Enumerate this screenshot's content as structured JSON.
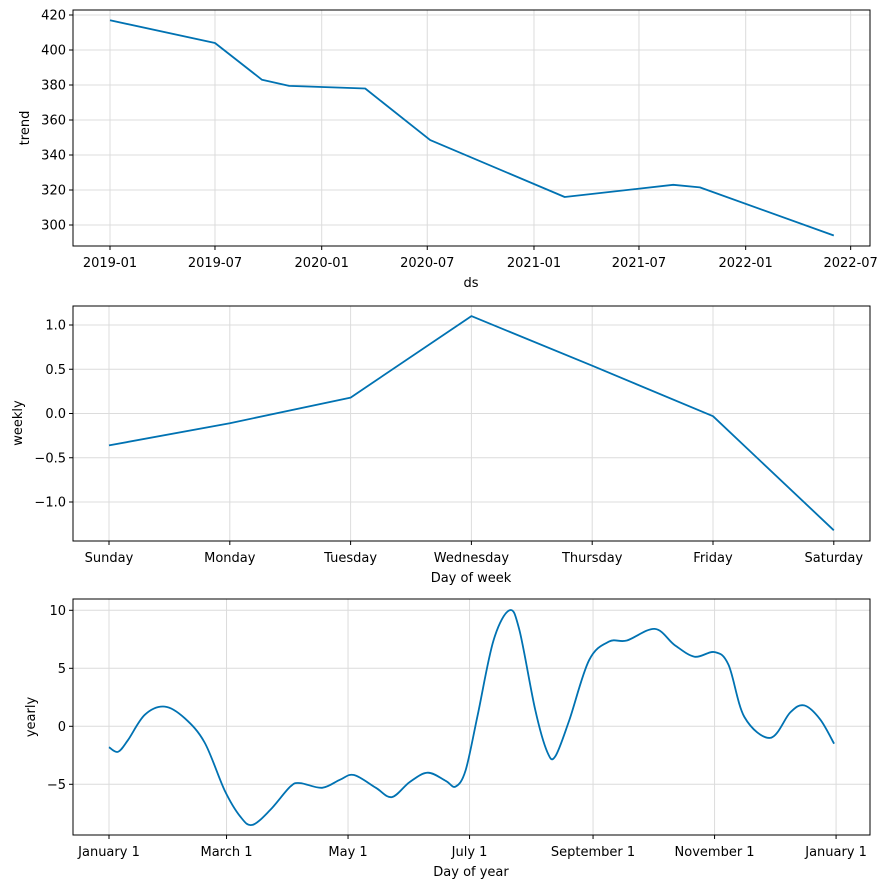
{
  "chart_data": [
    {
      "type": "line",
      "xlabel": "ds",
      "ylabel": "trend",
      "grid": true,
      "color": "#0072B2",
      "ylim": [
        288,
        423
      ],
      "x_ticks": [
        "2019-01",
        "2019-07",
        "2020-01",
        "2020-07",
        "2021-01",
        "2021-07",
        "2022-01",
        "2022-07"
      ],
      "y_ticks": [
        "300",
        "320",
        "340",
        "360",
        "380",
        "400",
        "420"
      ],
      "x": [
        "2019-01-01",
        "2019-07-01",
        "2019-09-20",
        "2019-11-06",
        "2020-03-16",
        "2020-07-06",
        "2021-02-23",
        "2021-08-29",
        "2021-10-14",
        "2022-06-02"
      ],
      "y": [
        417,
        404,
        383,
        379.5,
        378,
        348.5,
        316,
        323,
        321.5,
        294
      ]
    },
    {
      "type": "line",
      "xlabel": "Day of week",
      "ylabel": "weekly",
      "grid": true,
      "color": "#0072B2",
      "ylim": [
        -1.45,
        1.23
      ],
      "y_ticks": [
        "−1.0",
        "−0.5",
        "0.0",
        "0.5",
        "1.0"
      ],
      "categories": [
        "Sunday",
        "Monday",
        "Tuesday",
        "Wednesday",
        "Thursday",
        "Friday",
        "Saturday"
      ],
      "values": [
        -0.36,
        -0.11,
        0.18,
        1.1,
        0.54,
        -0.03,
        -1.32
      ]
    },
    {
      "type": "line",
      "xlabel": "Day of year",
      "ylabel": "yearly",
      "grid": true,
      "color": "#0072B2",
      "ylim": [
        -9.4,
        10.9
      ],
      "x_ticks": [
        {
          "label": "January 1",
          "day": 0
        },
        {
          "label": "March 1",
          "day": 59
        },
        {
          "label": "May 1",
          "day": 120
        },
        {
          "label": "July 1",
          "day": 181
        },
        {
          "label": "September 1",
          "day": 243
        },
        {
          "label": "November 1",
          "day": 304
        },
        {
          "label": "January 1",
          "day": 365
        }
      ],
      "y_ticks": [
        "−5",
        "0",
        "5",
        "10"
      ],
      "x": [
        0,
        4.5,
        9.5,
        18,
        28,
        38,
        48,
        58,
        66,
        72,
        81,
        91,
        96,
        107,
        116,
        123,
        134,
        142,
        151,
        160,
        169,
        174,
        179,
        185,
        193,
        201,
        206,
        214,
        220,
        224,
        231,
        241,
        251,
        260,
        274,
        284,
        294,
        304,
        311,
        319,
        332,
        342,
        349,
        357,
        364
      ],
      "y": [
        -1.8,
        -2.2,
        -1.2,
        1.0,
        1.7,
        0.7,
        -1.4,
        -5.5,
        -7.8,
        -8.5,
        -7.2,
        -5.2,
        -4.9,
        -5.3,
        -4.6,
        -4.2,
        -5.3,
        -6.1,
        -4.8,
        -4.0,
        -4.7,
        -5.2,
        -3.8,
        0.9,
        7.4,
        10.0,
        8.3,
        1.4,
        -2.2,
        -2.6,
        0.5,
        5.7,
        7.3,
        7.4,
        8.4,
        7.0,
        6.0,
        6.4,
        5.3,
        0.8,
        -1.0,
        1.2,
        1.8,
        0.6,
        -1.5
      ]
    }
  ]
}
